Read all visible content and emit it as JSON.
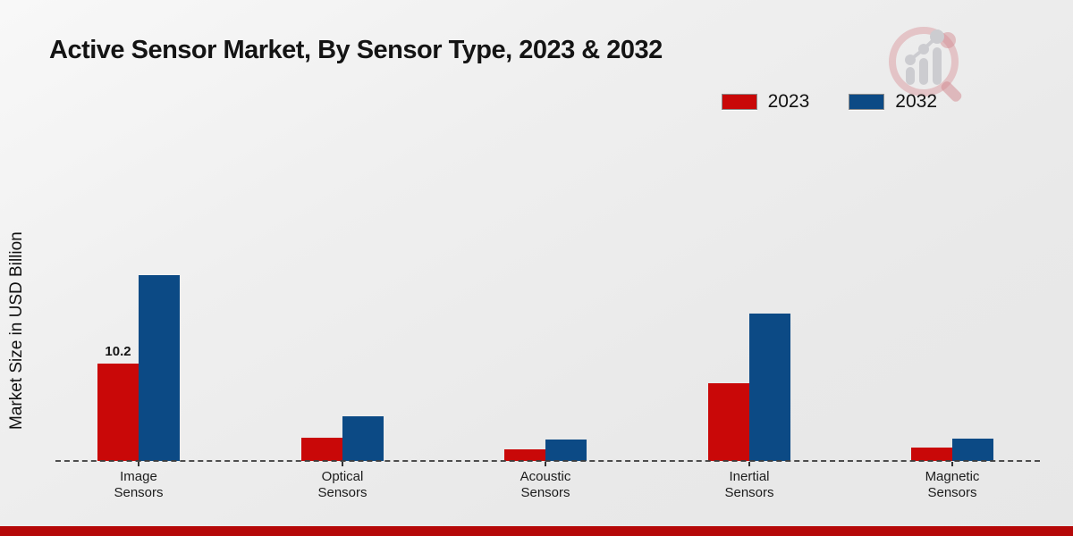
{
  "page": {
    "title": "Active Sensor Market, By Sensor Type, 2023 & 2032"
  },
  "chart_data": {
    "type": "bar",
    "title": "Active Sensor Market, By Sensor Type, 2023 & 2032",
    "xlabel": "",
    "ylabel": "Market Size in USD Billion",
    "categories": [
      "Image Sensors",
      "Optical Sensors",
      "Acoustic Sensors",
      "Inertial Sensors",
      "Magnetic Sensors"
    ],
    "series": [
      {
        "name": "2023",
        "color": "#c90808",
        "values": [
          10.2,
          2.4,
          1.2,
          8.1,
          1.4
        ]
      },
      {
        "name": "2032",
        "color": "#0c4a85",
        "values": [
          19.4,
          4.7,
          2.2,
          15.4,
          2.3
        ]
      }
    ],
    "annotations": [
      {
        "series": "2023",
        "category": "Image Sensors",
        "text": "10.2"
      }
    ],
    "ylim": [
      0,
      20
    ],
    "grid": false,
    "legend_position": "top-right",
    "baseline_style": "dashed"
  },
  "watermark": {
    "name": "market-research-logo",
    "ring_color": "#d4838a",
    "bar_color": "#c7c7cc"
  },
  "footer": {
    "stripe_color": "#b50808"
  }
}
